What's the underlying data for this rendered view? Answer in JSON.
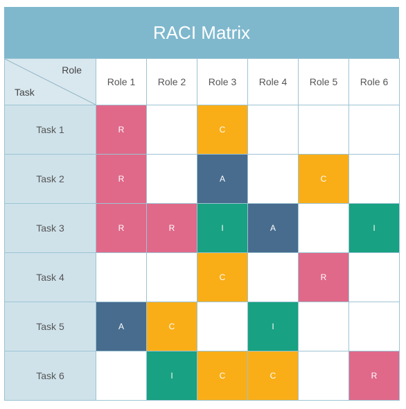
{
  "title": "RACI Matrix",
  "corner": {
    "role_label": "Role",
    "task_label": "Task"
  },
  "roles": [
    "Role 1",
    "Role 2",
    "Role 3",
    "Role 4",
    "Role 5",
    "Role 6"
  ],
  "colors": {
    "R": "#e0698a",
    "A": "#476c8e",
    "C": "#f9ae18",
    "I": "#18a182",
    "header": "#7fb8cd",
    "task_column": "#cfe2ea"
  },
  "tasks": [
    {
      "name": "Task 1",
      "cells": [
        "R",
        "",
        "C",
        "",
        "",
        ""
      ]
    },
    {
      "name": "Task 2",
      "cells": [
        "R",
        "",
        "A",
        "",
        "C",
        ""
      ]
    },
    {
      "name": "Task 3",
      "cells": [
        "R",
        "R",
        "I",
        "A",
        "",
        "I"
      ]
    },
    {
      "name": "Task 4",
      "cells": [
        "",
        "",
        "C",
        "",
        "R",
        ""
      ]
    },
    {
      "name": "Task 5",
      "cells": [
        "A",
        "C",
        "",
        "I",
        "",
        ""
      ]
    },
    {
      "name": "Task 6",
      "cells": [
        "",
        "I",
        "C",
        "C",
        "",
        "R"
      ]
    }
  ]
}
